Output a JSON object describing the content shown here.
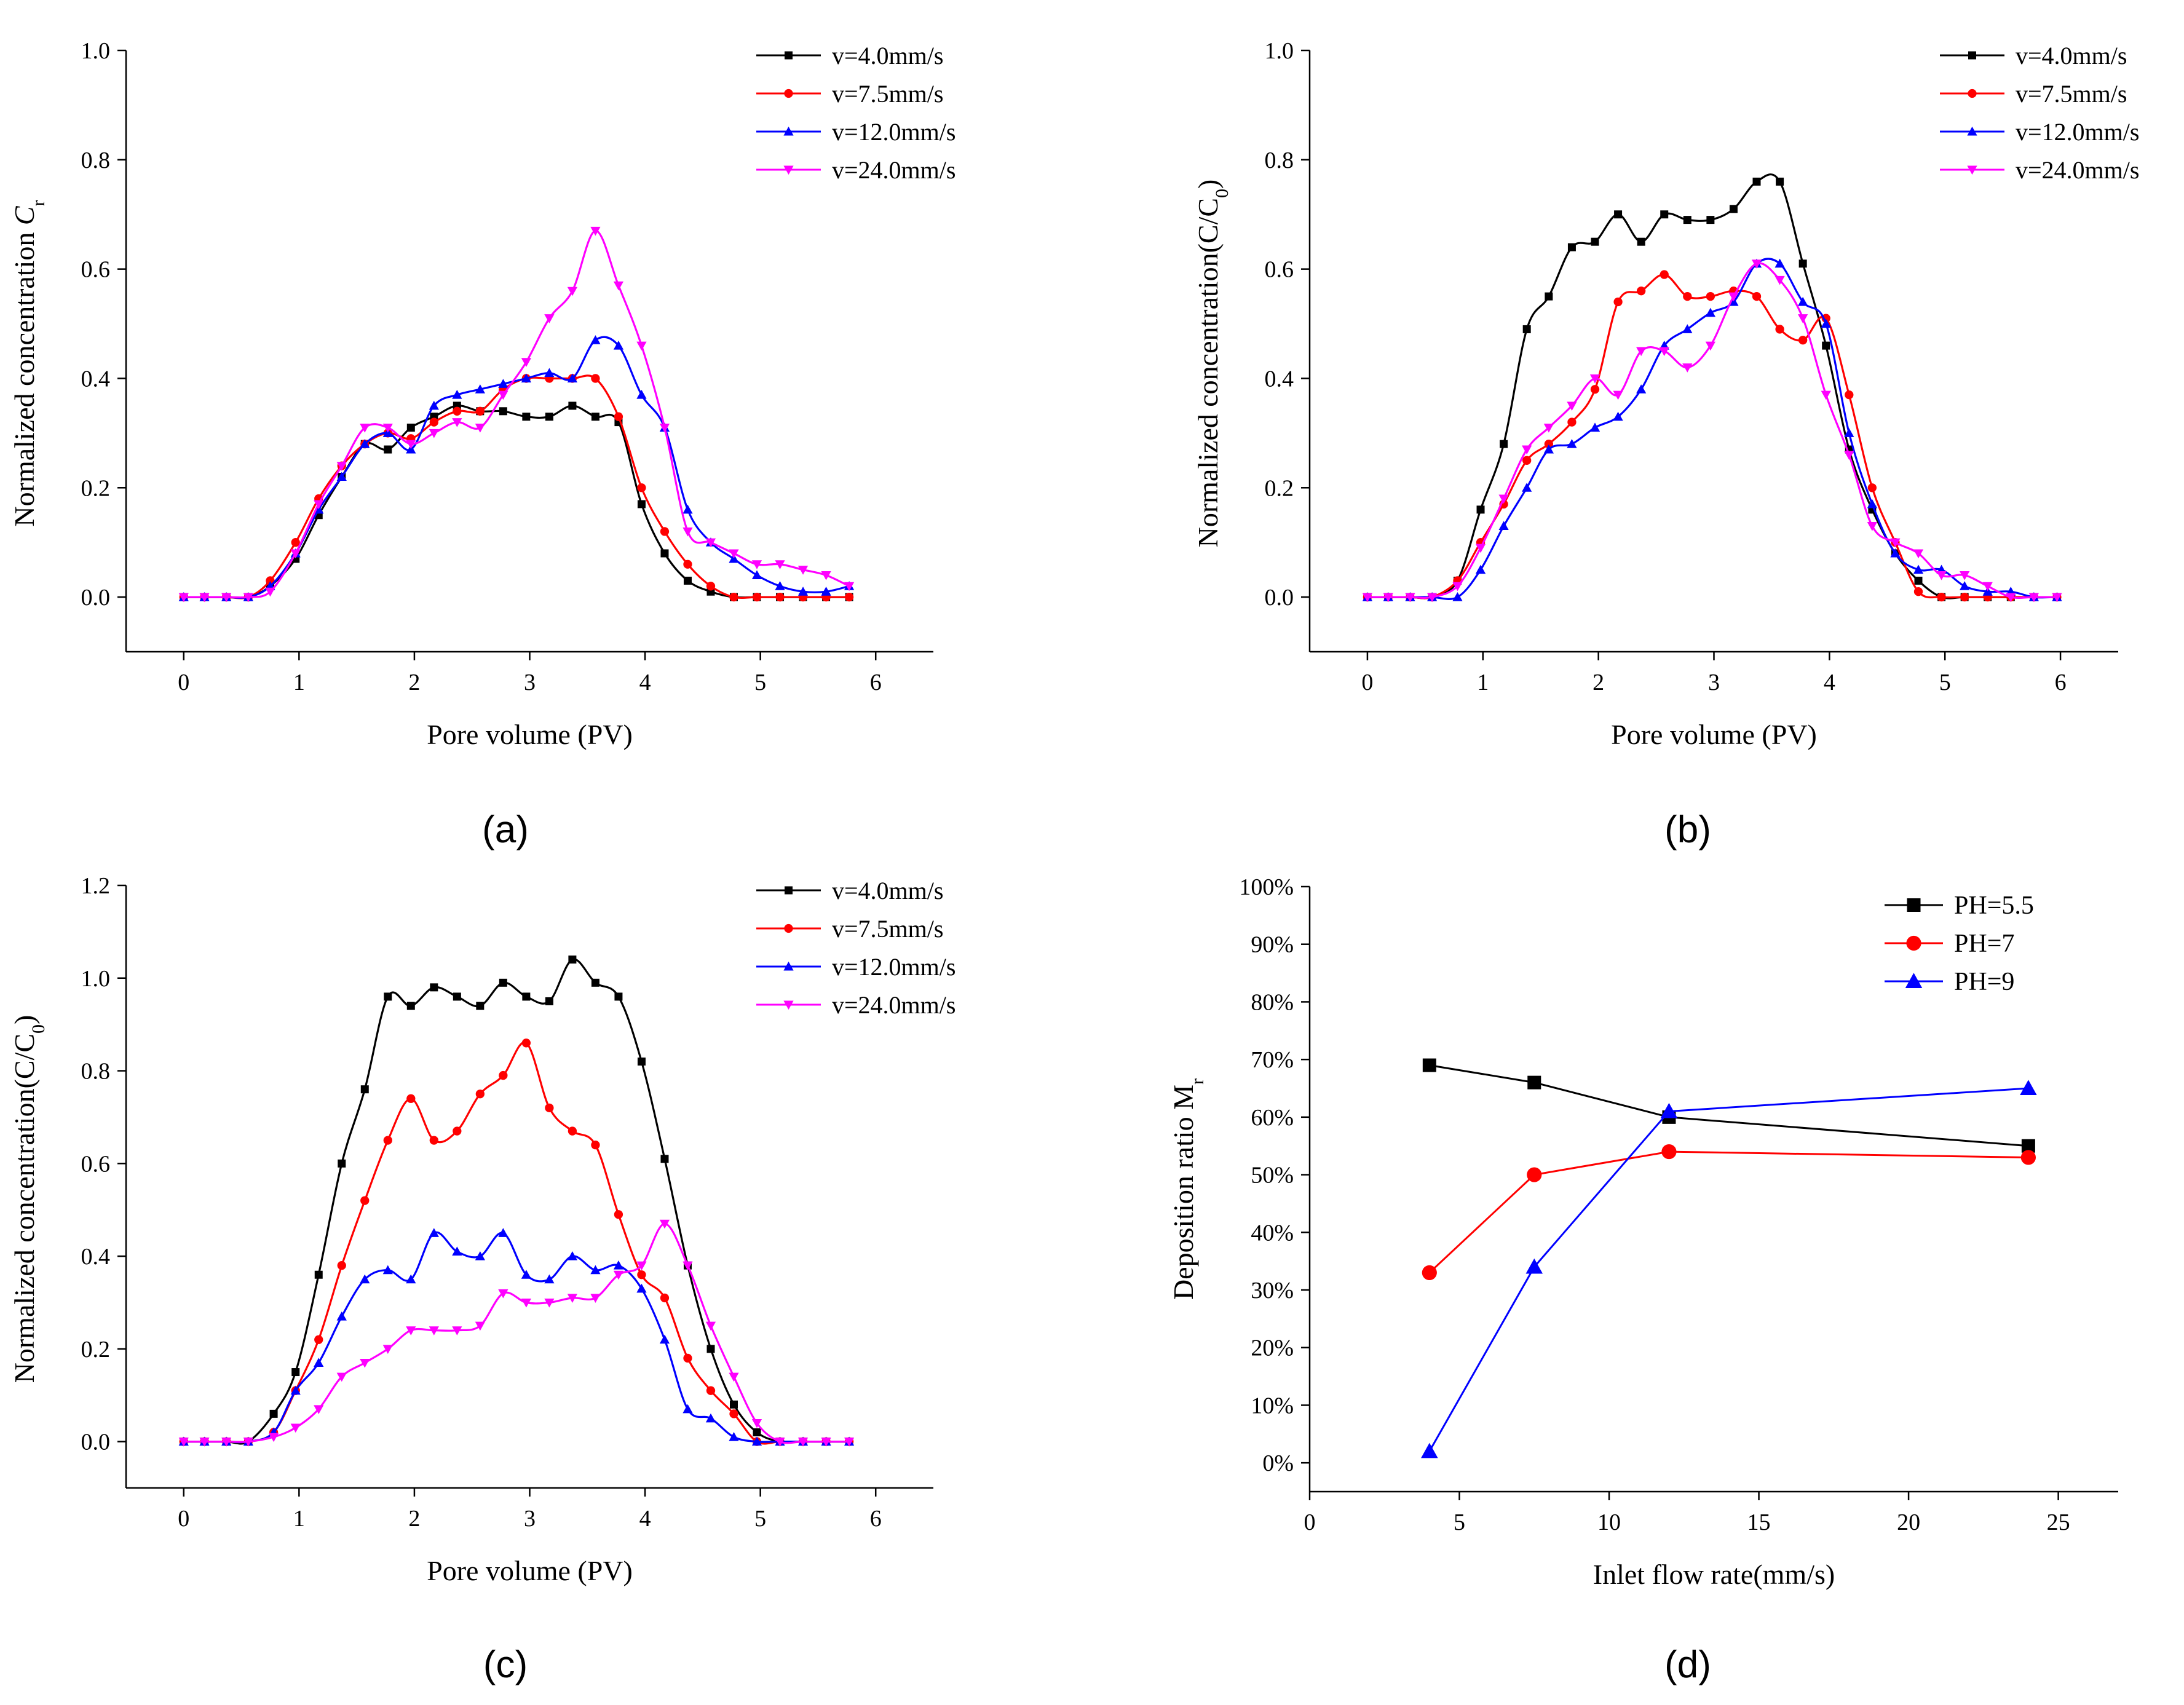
{
  "figure": {
    "panel_labels": [
      "(a)",
      "(b)",
      "(c)",
      "(d)"
    ]
  },
  "colors": {
    "s1": "#000000",
    "s2": "#ff0000",
    "s3": "#0000ff",
    "s4": "#ff00ff",
    "axis": "#000000"
  },
  "chart_data": [
    {
      "id": "a",
      "type": "line",
      "title": "",
      "xlabel": "Pore volume (PV)",
      "ylabel_text": "Normalized concentration ",
      "ylabel_symbol": "C",
      "ylabel_sub": "r",
      "ylabel_close": "",
      "xlim": [
        -0.5,
        6.5
      ],
      "ylim": [
        -0.1,
        1.0
      ],
      "xticks": [
        0,
        1,
        2,
        3,
        4,
        5,
        6
      ],
      "xtick_labels": [
        "0",
        "1",
        "2",
        "3",
        "4",
        "5",
        "6"
      ],
      "yticks": [
        0,
        0.2,
        0.4,
        0.6,
        0.8,
        1.0
      ],
      "ytick_labels": [
        "0.0",
        "0.2",
        "0.4",
        "0.6",
        "0.8",
        "1.0"
      ],
      "legend": "top-right",
      "series": [
        {
          "name": "v=4.0mm/s",
          "color": "#000000",
          "marker": "square",
          "x": [
            0,
            0.18,
            0.37,
            0.56,
            0.75,
            0.97,
            1.17,
            1.37,
            1.57,
            1.77,
            1.97,
            2.17,
            2.37,
            2.57,
            2.77,
            2.97,
            3.17,
            3.37,
            3.57,
            3.77,
            3.97,
            4.17,
            4.37,
            4.57,
            4.77,
            4.97,
            5.17,
            5.37,
            5.57,
            5.77
          ],
          "y": [
            0,
            0,
            0,
            0,
            0.02,
            0.07,
            0.15,
            0.22,
            0.28,
            0.27,
            0.31,
            0.33,
            0.35,
            0.34,
            0.34,
            0.33,
            0.33,
            0.35,
            0.33,
            0.32,
            0.17,
            0.08,
            0.03,
            0.01,
            0,
            0,
            0,
            0,
            0,
            0
          ]
        },
        {
          "name": "v=7.5mm/s",
          "color": "#ff0000",
          "marker": "circle",
          "x": [
            0,
            0.18,
            0.37,
            0.56,
            0.75,
            0.97,
            1.17,
            1.37,
            1.57,
            1.77,
            1.97,
            2.17,
            2.37,
            2.57,
            2.77,
            2.97,
            3.17,
            3.37,
            3.57,
            3.77,
            3.97,
            4.17,
            4.37,
            4.57,
            4.77,
            4.97,
            5.17,
            5.37,
            5.57,
            5.77
          ],
          "y": [
            0,
            0,
            0,
            0,
            0.03,
            0.1,
            0.18,
            0.24,
            0.28,
            0.3,
            0.29,
            0.32,
            0.34,
            0.34,
            0.38,
            0.4,
            0.4,
            0.4,
            0.4,
            0.33,
            0.2,
            0.12,
            0.06,
            0.02,
            0,
            0,
            0,
            0,
            0,
            0
          ]
        },
        {
          "name": "v=12.0mm/s",
          "color": "#0000ff",
          "marker": "triangle-up",
          "x": [
            0,
            0.18,
            0.37,
            0.56,
            0.75,
            0.97,
            1.17,
            1.37,
            1.57,
            1.77,
            1.97,
            2.17,
            2.37,
            2.57,
            2.77,
            2.97,
            3.17,
            3.37,
            3.57,
            3.77,
            3.97,
            4.17,
            4.37,
            4.57,
            4.77,
            4.97,
            5.17,
            5.37,
            5.57,
            5.77
          ],
          "y": [
            0,
            0,
            0,
            0,
            0.02,
            0.08,
            0.16,
            0.22,
            0.28,
            0.3,
            0.27,
            0.35,
            0.37,
            0.38,
            0.39,
            0.4,
            0.41,
            0.4,
            0.47,
            0.46,
            0.37,
            0.31,
            0.16,
            0.1,
            0.07,
            0.04,
            0.02,
            0.01,
            0.01,
            0.02
          ]
        },
        {
          "name": "v=24.0mm/s",
          "color": "#ff00ff",
          "marker": "triangle-down",
          "x": [
            0,
            0.18,
            0.37,
            0.56,
            0.75,
            0.97,
            1.17,
            1.37,
            1.57,
            1.77,
            1.97,
            2.17,
            2.37,
            2.57,
            2.77,
            2.97,
            3.17,
            3.37,
            3.57,
            3.77,
            3.97,
            4.17,
            4.37,
            4.57,
            4.77,
            4.97,
            5.17,
            5.37,
            5.57,
            5.77
          ],
          "y": [
            0,
            0,
            0,
            0,
            0.01,
            0.08,
            0.17,
            0.24,
            0.31,
            0.31,
            0.28,
            0.3,
            0.32,
            0.31,
            0.37,
            0.43,
            0.51,
            0.56,
            0.67,
            0.57,
            0.46,
            0.31,
            0.12,
            0.1,
            0.08,
            0.06,
            0.06,
            0.05,
            0.04,
            0.02
          ]
        }
      ]
    },
    {
      "id": "b",
      "type": "line",
      "title": "",
      "xlabel": "Pore volume (PV)",
      "ylabel_text": "Normalized concentration(C/C",
      "ylabel_symbol": "",
      "ylabel_sub": "0",
      "ylabel_close": ")",
      "xlim": [
        -0.5,
        6.5
      ],
      "ylim": [
        -0.1,
        1.0
      ],
      "xticks": [
        0,
        1,
        2,
        3,
        4,
        5,
        6
      ],
      "xtick_labels": [
        "0",
        "1",
        "2",
        "3",
        "4",
        "5",
        "6"
      ],
      "yticks": [
        0,
        0.2,
        0.4,
        0.6,
        0.8,
        1.0
      ],
      "ytick_labels": [
        "0.0",
        "0.2",
        "0.4",
        "0.6",
        "0.8",
        "1.0"
      ],
      "legend": "top-right",
      "series": [
        {
          "name": "v=4.0mm/s",
          "color": "#000000",
          "marker": "square",
          "x": [
            0,
            0.18,
            0.37,
            0.56,
            0.78,
            0.98,
            1.18,
            1.38,
            1.57,
            1.77,
            1.97,
            2.17,
            2.37,
            2.57,
            2.77,
            2.97,
            3.17,
            3.37,
            3.57,
            3.77,
            3.97,
            4.17,
            4.37,
            4.57,
            4.77,
            4.97,
            5.17,
            5.37,
            5.57,
            5.77,
            5.97
          ],
          "y": [
            0,
            0,
            0,
            0,
            0.03,
            0.16,
            0.28,
            0.49,
            0.55,
            0.64,
            0.65,
            0.7,
            0.65,
            0.7,
            0.69,
            0.69,
            0.71,
            0.76,
            0.76,
            0.61,
            0.46,
            0.27,
            0.16,
            0.08,
            0.03,
            0,
            0,
            0,
            0,
            0,
            0
          ]
        },
        {
          "name": "v=7.5mm/s",
          "color": "#ff0000",
          "marker": "circle",
          "x": [
            0,
            0.18,
            0.37,
            0.56,
            0.78,
            0.98,
            1.18,
            1.38,
            1.57,
            1.77,
            1.97,
            2.17,
            2.37,
            2.57,
            2.77,
            2.97,
            3.17,
            3.37,
            3.57,
            3.77,
            3.97,
            4.17,
            4.37,
            4.57,
            4.77,
            4.97,
            5.17,
            5.37,
            5.57,
            5.77,
            5.97
          ],
          "y": [
            0,
            0,
            0,
            0,
            0.03,
            0.1,
            0.17,
            0.25,
            0.28,
            0.32,
            0.38,
            0.54,
            0.56,
            0.59,
            0.55,
            0.55,
            0.56,
            0.55,
            0.49,
            0.47,
            0.51,
            0.37,
            0.2,
            0.1,
            0.01,
            0,
            0,
            0,
            0,
            0,
            0
          ]
        },
        {
          "name": "v=12.0mm/s",
          "color": "#0000ff",
          "marker": "triangle-up",
          "x": [
            0,
            0.18,
            0.37,
            0.56,
            0.78,
            0.98,
            1.18,
            1.38,
            1.57,
            1.77,
            1.97,
            2.17,
            2.37,
            2.57,
            2.77,
            2.97,
            3.17,
            3.37,
            3.57,
            3.77,
            3.97,
            4.17,
            4.37,
            4.57,
            4.77,
            4.97,
            5.17,
            5.37,
            5.57,
            5.77,
            5.97
          ],
          "y": [
            0,
            0,
            0,
            0,
            0,
            0.05,
            0.13,
            0.2,
            0.27,
            0.28,
            0.31,
            0.33,
            0.38,
            0.46,
            0.49,
            0.52,
            0.54,
            0.61,
            0.61,
            0.54,
            0.5,
            0.3,
            0.17,
            0.08,
            0.05,
            0.05,
            0.02,
            0.01,
            0.01,
            0,
            0
          ]
        },
        {
          "name": "v=24.0mm/s",
          "color": "#ff00ff",
          "marker": "triangle-down",
          "x": [
            0,
            0.18,
            0.37,
            0.56,
            0.78,
            0.98,
            1.18,
            1.38,
            1.57,
            1.77,
            1.97,
            2.17,
            2.37,
            2.57,
            2.77,
            2.97,
            3.17,
            3.37,
            3.57,
            3.77,
            3.97,
            4.17,
            4.37,
            4.57,
            4.77,
            4.97,
            5.17,
            5.37,
            5.57,
            5.77,
            5.97
          ],
          "y": [
            0,
            0,
            0,
            0,
            0.02,
            0.09,
            0.18,
            0.27,
            0.31,
            0.35,
            0.4,
            0.37,
            0.45,
            0.45,
            0.42,
            0.46,
            0.55,
            0.61,
            0.58,
            0.51,
            0.37,
            0.26,
            0.13,
            0.1,
            0.08,
            0.04,
            0.04,
            0.02,
            0,
            0,
            0
          ]
        }
      ]
    },
    {
      "id": "c",
      "type": "line",
      "title": "",
      "xlabel": "Pore volume (PV)",
      "ylabel_text": "Normalized concentration(C/C",
      "ylabel_symbol": "",
      "ylabel_sub": "0",
      "ylabel_close": ")",
      "xlim": [
        -0.5,
        6.5
      ],
      "ylim": [
        -0.1,
        1.2
      ],
      "xticks": [
        0,
        1,
        2,
        3,
        4,
        5,
        6
      ],
      "xtick_labels": [
        "0",
        "1",
        "2",
        "3",
        "4",
        "5",
        "6"
      ],
      "yticks": [
        0,
        0.2,
        0.4,
        0.6,
        0.8,
        1.0,
        1.2
      ],
      "ytick_labels": [
        "0.0",
        "0.2",
        "0.4",
        "0.6",
        "0.8",
        "1.0",
        "1.2"
      ],
      "legend": "top-right",
      "series": [
        {
          "name": "v=4.0mm/s",
          "color": "#000000",
          "marker": "square",
          "x": [
            0,
            0.18,
            0.37,
            0.56,
            0.78,
            0.97,
            1.17,
            1.37,
            1.57,
            1.77,
            1.97,
            2.17,
            2.37,
            2.57,
            2.77,
            2.97,
            3.17,
            3.37,
            3.57,
            3.77,
            3.97,
            4.17,
            4.37,
            4.57,
            4.77,
            4.97,
            5.17,
            5.37,
            5.57,
            5.77
          ],
          "y": [
            0,
            0,
            0,
            0,
            0.06,
            0.15,
            0.36,
            0.6,
            0.76,
            0.96,
            0.94,
            0.98,
            0.96,
            0.94,
            0.99,
            0.96,
            0.95,
            1.04,
            0.99,
            0.96,
            0.82,
            0.61,
            0.38,
            0.2,
            0.08,
            0.02,
            0,
            0,
            0,
            0
          ]
        },
        {
          "name": "v=7.5mm/s",
          "color": "#ff0000",
          "marker": "circle",
          "x": [
            0,
            0.18,
            0.37,
            0.56,
            0.78,
            0.97,
            1.17,
            1.37,
            1.57,
            1.77,
            1.97,
            2.17,
            2.37,
            2.57,
            2.77,
            2.97,
            3.17,
            3.37,
            3.57,
            3.77,
            3.97,
            4.17,
            4.37,
            4.57,
            4.77,
            4.97,
            5.17,
            5.37,
            5.57,
            5.77
          ],
          "y": [
            0,
            0,
            0,
            0,
            0.02,
            0.11,
            0.22,
            0.38,
            0.52,
            0.65,
            0.74,
            0.65,
            0.67,
            0.75,
            0.79,
            0.86,
            0.72,
            0.67,
            0.64,
            0.49,
            0.36,
            0.31,
            0.18,
            0.11,
            0.06,
            0,
            0,
            0,
            0,
            0
          ]
        },
        {
          "name": "v=12.0mm/s",
          "color": "#0000ff",
          "marker": "triangle-up",
          "x": [
            0,
            0.18,
            0.37,
            0.56,
            0.78,
            0.97,
            1.17,
            1.37,
            1.57,
            1.77,
            1.97,
            2.17,
            2.37,
            2.57,
            2.77,
            2.97,
            3.17,
            3.37,
            3.57,
            3.77,
            3.97,
            4.17,
            4.37,
            4.57,
            4.77,
            4.97,
            5.17,
            5.37,
            5.57,
            5.77
          ],
          "y": [
            0,
            0,
            0,
            0,
            0.02,
            0.11,
            0.17,
            0.27,
            0.35,
            0.37,
            0.35,
            0.45,
            0.41,
            0.4,
            0.45,
            0.36,
            0.35,
            0.4,
            0.37,
            0.38,
            0.33,
            0.22,
            0.07,
            0.05,
            0.01,
            0,
            0,
            0,
            0,
            0
          ]
        },
        {
          "name": "v=24.0mm/s",
          "color": "#ff00ff",
          "marker": "triangle-down",
          "x": [
            0,
            0.18,
            0.37,
            0.56,
            0.78,
            0.97,
            1.17,
            1.37,
            1.57,
            1.77,
            1.97,
            2.17,
            2.37,
            2.57,
            2.77,
            2.97,
            3.17,
            3.37,
            3.57,
            3.77,
            3.97,
            4.17,
            4.37,
            4.57,
            4.77,
            4.97,
            5.17,
            5.37,
            5.57,
            5.77
          ],
          "y": [
            0,
            0,
            0,
            0,
            0.01,
            0.03,
            0.07,
            0.14,
            0.17,
            0.2,
            0.24,
            0.24,
            0.24,
            0.25,
            0.32,
            0.3,
            0.3,
            0.31,
            0.31,
            0.36,
            0.38,
            0.47,
            0.38,
            0.25,
            0.14,
            0.04,
            0,
            0,
            0,
            0
          ]
        }
      ]
    },
    {
      "id": "d",
      "type": "line",
      "title": "",
      "xlabel": "Inlet flow rate(mm/s)",
      "ylabel_text": "Deposition ratio M",
      "ylabel_symbol": "",
      "ylabel_sub": "r",
      "ylabel_close": "",
      "xlim": [
        0,
        27
      ],
      "ylim": [
        -0.05,
        1.0
      ],
      "xticks": [
        0,
        5,
        10,
        15,
        20,
        25
      ],
      "xtick_labels": [
        "0",
        "5",
        "10",
        "15",
        "20",
        "25"
      ],
      "yticks": [
        0,
        0.1,
        0.2,
        0.3,
        0.4,
        0.5,
        0.6,
        0.7,
        0.8,
        0.9,
        1.0
      ],
      "ytick_labels": [
        "0%",
        "10%",
        "20%",
        "30%",
        "40%",
        "50%",
        "60%",
        "70%",
        "80%",
        "90%",
        "100%"
      ],
      "legend": "top-right",
      "series": [
        {
          "name": "PH=5.5",
          "color": "#000000",
          "marker": "square",
          "x": [
            4,
            7.5,
            12,
            24
          ],
          "y": [
            0.69,
            0.66,
            0.6,
            0.55
          ]
        },
        {
          "name": "PH=7",
          "color": "#ff0000",
          "marker": "circle",
          "x": [
            4,
            7.5,
            12,
            24
          ],
          "y": [
            0.33,
            0.5,
            0.54,
            0.53
          ]
        },
        {
          "name": "PH=9",
          "color": "#0000ff",
          "marker": "triangle-up",
          "x": [
            4,
            7.5,
            12,
            24
          ],
          "y": [
            0.02,
            0.34,
            0.61,
            0.65
          ]
        }
      ]
    }
  ]
}
